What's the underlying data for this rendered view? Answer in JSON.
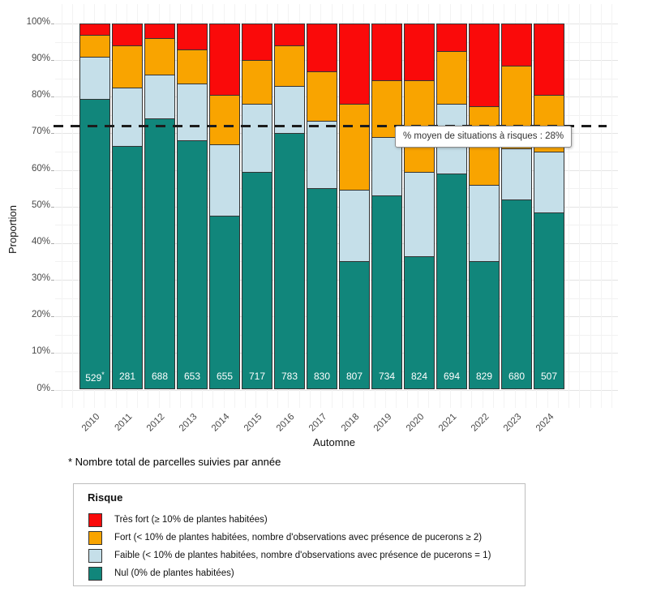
{
  "chart_data": {
    "type": "bar",
    "stacked": true,
    "title": "",
    "xlabel": "Automne",
    "ylabel": "Proportion",
    "categories": [
      "2010",
      "2011",
      "2012",
      "2013",
      "2014",
      "2015",
      "2016",
      "2017",
      "2018",
      "2019",
      "2020",
      "2021",
      "2022",
      "2023",
      "2024"
    ],
    "y_ticks": [
      {
        "label": "0%",
        "pct": 0
      },
      {
        "label": "10%",
        "pct": 10
      },
      {
        "label": "20%",
        "pct": 20
      },
      {
        "label": "30%",
        "pct": 30
      },
      {
        "label": "40%",
        "pct": 40
      },
      {
        "label": "50%",
        "pct": 50
      },
      {
        "label": "60%",
        "pct": 60
      },
      {
        "label": "70%",
        "pct": 70
      },
      {
        "label": "80%",
        "pct": 80
      },
      {
        "label": "90%",
        "pct": 90
      },
      {
        "label": "100%",
        "pct": 100
      }
    ],
    "ylim": [
      0,
      100
    ],
    "grid": "on",
    "series": [
      {
        "name": "Nul (0% de plantes habitées)",
        "color": "#11867B",
        "values": [
          79.5,
          66.5,
          74,
          68,
          47.5,
          59.5,
          70,
          55,
          35,
          53,
          36.5,
          59,
          35,
          52,
          48.5
        ]
      },
      {
        "name": "Faible (< 10% de plantes habitées, nombre d'observations avec présence de pucerons = 1)",
        "color": "#C5DFE9",
        "values": [
          11.5,
          16,
          12,
          15.5,
          19.5,
          18.5,
          13,
          18.5,
          19.5,
          16,
          23,
          19,
          21,
          14,
          16.5
        ]
      },
      {
        "name": "Fort (< 10% de plantes habitées, nombre d'observations avec présence de pucerons ≥ 2)",
        "color": "#F9A400",
        "values": [
          6,
          11.5,
          10,
          9.5,
          13.5,
          12,
          11,
          13.5,
          23.5,
          15.5,
          25,
          14.5,
          21.5,
          22.5,
          15.5
        ]
      },
      {
        "name": "Très fort (≥ 10% de plantes habitées)",
        "color": "#FA0A0A",
        "values": [
          3,
          6,
          4,
          7,
          19.5,
          10,
          6,
          13,
          22,
          15.5,
          15.5,
          7.5,
          22.5,
          11.5,
          19.5
        ]
      }
    ],
    "bar_totals": [
      "529",
      "281",
      "688",
      "653",
      "655",
      "717",
      "783",
      "830",
      "807",
      "734",
      "824",
      "694",
      "829",
      "680",
      "507"
    ],
    "first_bar_total_has_asterisk": true,
    "mean_risk_line": {
      "pct": 72,
      "style": "dashed",
      "color": "#1c1c1c"
    }
  },
  "annotation": {
    "label": "% moyen de situations à risques :  28%"
  },
  "footnote": "* Nombre total de parcelles suivies par année",
  "legend": {
    "title": "Risque"
  }
}
